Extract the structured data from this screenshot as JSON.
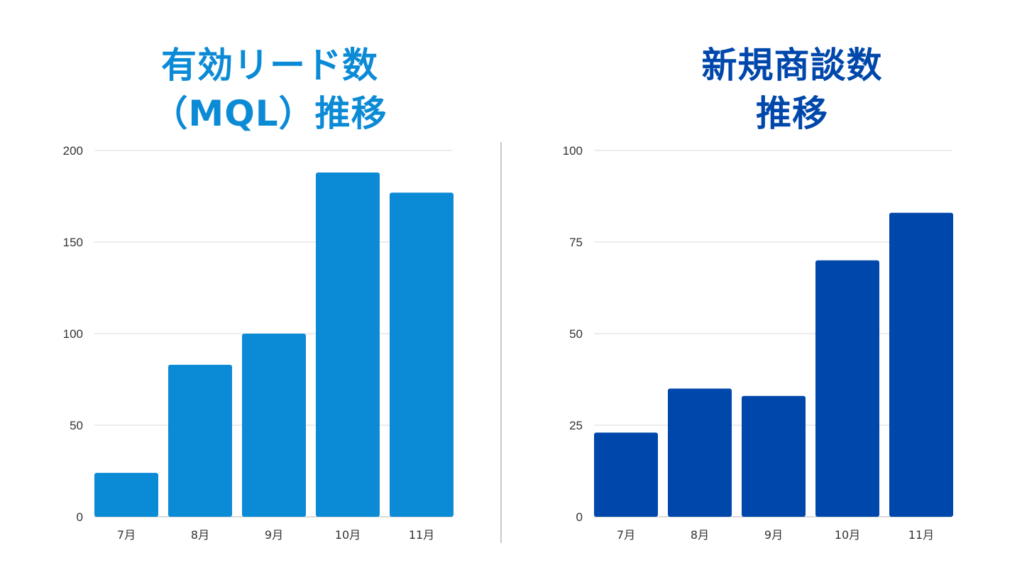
{
  "chart_data": [
    {
      "type": "bar",
      "title_lines": [
        "有効リード数",
        "（MQL）推移"
      ],
      "categories": [
        "7月",
        "8月",
        "9月",
        "10月",
        "11月"
      ],
      "values": [
        24,
        83,
        100,
        188,
        177
      ],
      "ylim": [
        0,
        200
      ],
      "yticks": [
        0,
        50,
        100,
        150,
        200
      ],
      "xlabel": "",
      "ylabel": "",
      "grid": true,
      "color": "#0B8AD6",
      "title_color": "#0B8AD6"
    },
    {
      "type": "bar",
      "title_lines": [
        "新規商談数",
        "推移"
      ],
      "categories": [
        "7月",
        "8月",
        "9月",
        "10月",
        "11月"
      ],
      "values": [
        23,
        35,
        33,
        70,
        83
      ],
      "ylim": [
        0,
        100
      ],
      "yticks": [
        0,
        25,
        50,
        75,
        100
      ],
      "xlabel": "",
      "ylabel": "",
      "grid": true,
      "color": "#0047AB",
      "title_color": "#0047AB"
    }
  ]
}
